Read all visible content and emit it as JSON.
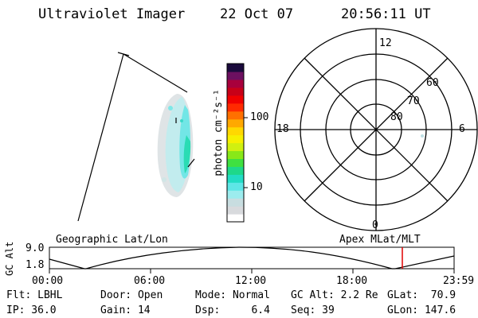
{
  "header": {
    "instrument": "Ultraviolet Imager",
    "date": "22 Oct 07",
    "time": "20:56:11 UT"
  },
  "colorbar": {
    "label": "photon cm⁻²s⁻¹",
    "ticks": [
      {
        "label": "100",
        "value": 100
      },
      {
        "label": "10",
        "value": 10
      }
    ],
    "colors": [
      "#ffffff",
      "#d8dadd",
      "#c8dde0",
      "#9cecee",
      "#5ee6e6",
      "#22dcc4",
      "#1ed88a",
      "#3fe040",
      "#88e818",
      "#d0f010",
      "#f6f000",
      "#ffd800",
      "#ffa800",
      "#ff7000",
      "#ff2a00",
      "#f00000",
      "#c80018",
      "#a8003c",
      "#6c1060",
      "#1a0a3c"
    ]
  },
  "polar": {
    "mlt_labels": {
      "top": "12",
      "left": "18",
      "right": "6",
      "bottom": "0"
    },
    "lat_labels": [
      "60",
      "70",
      "80"
    ]
  },
  "timeline": {
    "left_label": "Geographic Lat/Lon",
    "right_label": "Apex MLat/MLT",
    "y_label": "GC Alt",
    "y_ticks": [
      "9.0",
      "1.8"
    ],
    "x_ticks": [
      "00:00",
      "06:00",
      "12:00",
      "18:00",
      "23:59"
    ],
    "marker_color": "#e00000"
  },
  "footer": {
    "flt": "Flt: LBHL",
    "ip": "IP: 36.0",
    "door": "Door: Open",
    "gain": "Gain: 14",
    "mode": "Mode: Normal",
    "dsp": "Dsp:     6.4",
    "gcalt": "GC Alt: 2.2 Re",
    "seq": "Seq: 39",
    "glat": "GLat:  70.9",
    "glon": "GLon: 147.6"
  }
}
